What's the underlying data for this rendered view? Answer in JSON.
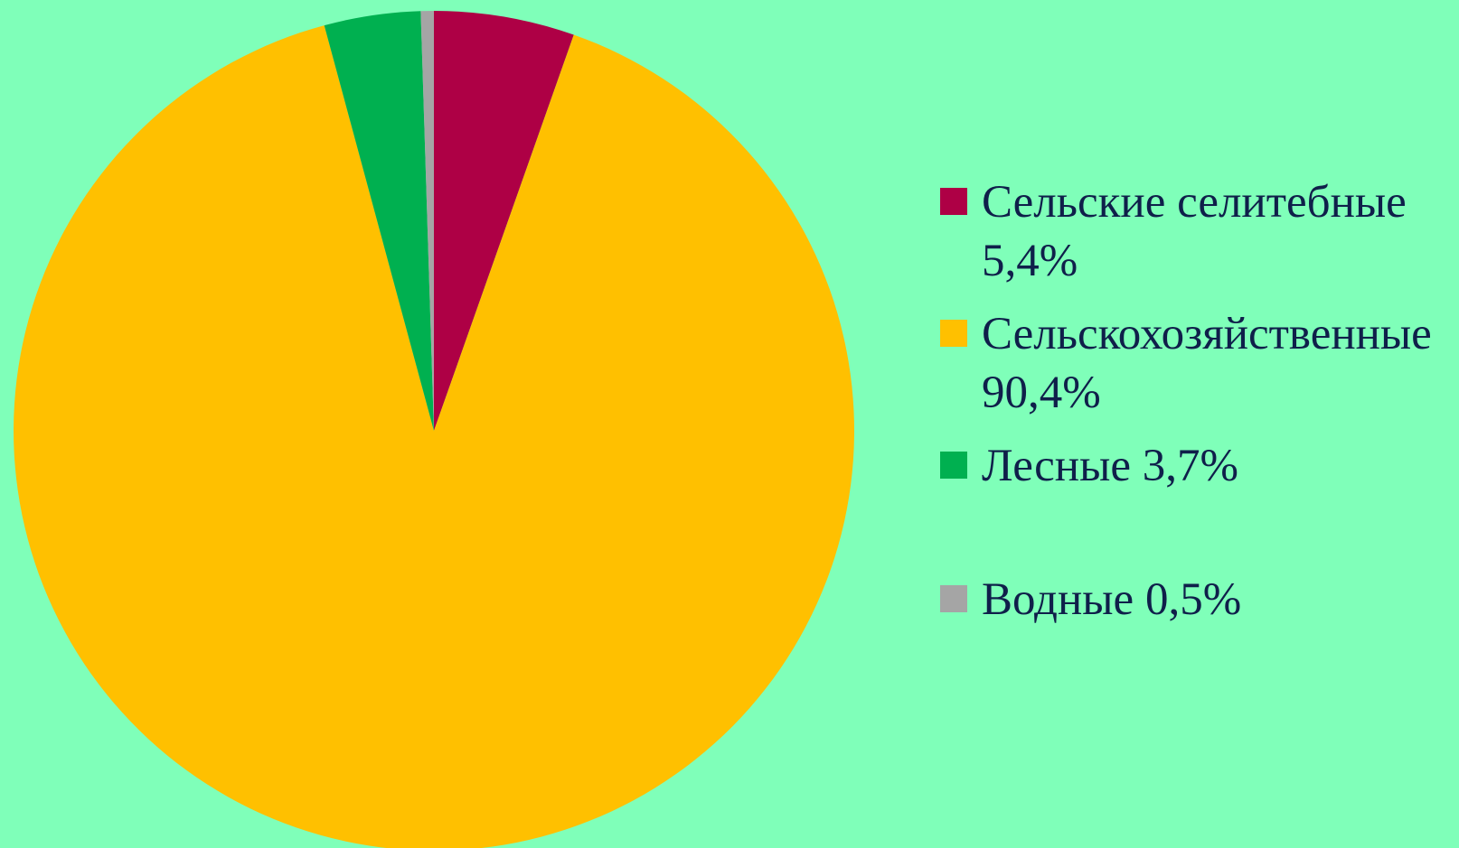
{
  "chart_data": {
    "type": "pie",
    "start_angle_deg": 0,
    "direction": "clockwise",
    "legend_position": "right",
    "slices": [
      {
        "label": "Сельские селитебные\n5,4%",
        "value": 5.4,
        "color": "#ae0045"
      },
      {
        "label": "Сельскохозяйственные\n90,4%",
        "value": 90.4,
        "color": "#ffc000"
      },
      {
        "label": "Лесные 3,7%",
        "value": 3.7,
        "color": "#00b050"
      },
      {
        "label": "Водные 0,5%",
        "value": 0.5,
        "color": "#a5a5a5"
      }
    ]
  },
  "colors": {
    "background": "#7fffb9",
    "legend_text": "#0f1f4a"
  }
}
